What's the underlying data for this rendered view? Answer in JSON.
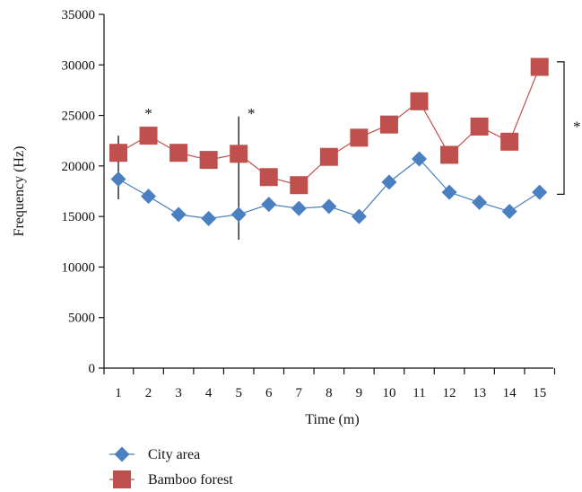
{
  "chart_data": {
    "type": "line",
    "xlabel": "Time (m)",
    "ylabel": "Frequency (Hz)",
    "x": [
      1,
      2,
      3,
      4,
      5,
      6,
      7,
      8,
      9,
      10,
      11,
      12,
      13,
      14,
      15
    ],
    "ylim": [
      0,
      35000
    ],
    "yticks": [
      0,
      5000,
      10000,
      15000,
      20000,
      25000,
      30000,
      35000
    ],
    "series": [
      {
        "name": "City area",
        "color": "#4a7fc1",
        "marker": "diamond",
        "values": [
          18700,
          17000,
          15200,
          14800,
          15200,
          16200,
          15800,
          16000,
          15000,
          18400,
          20700,
          17400,
          16400,
          15500,
          17400
        ]
      },
      {
        "name": "Bamboo forest",
        "color": "#c0504d",
        "marker": "square",
        "values": [
          21300,
          23000,
          21300,
          20600,
          21200,
          18900,
          18100,
          20900,
          22800,
          24100,
          26400,
          21100,
          23900,
          22400,
          29800
        ]
      }
    ],
    "error_bars": [
      {
        "x": 1,
        "low": 16700,
        "high": 23000
      },
      {
        "x": 5,
        "low": 12700,
        "high": 24900
      }
    ],
    "annotations": [
      {
        "text": "*",
        "x": 2
      },
      {
        "text": "*",
        "x": 5
      },
      {
        "text": "*",
        "x": 15,
        "bracket_range": [
          17200,
          30300
        ]
      }
    ],
    "legend_position": "bottom-left",
    "grid": false
  }
}
